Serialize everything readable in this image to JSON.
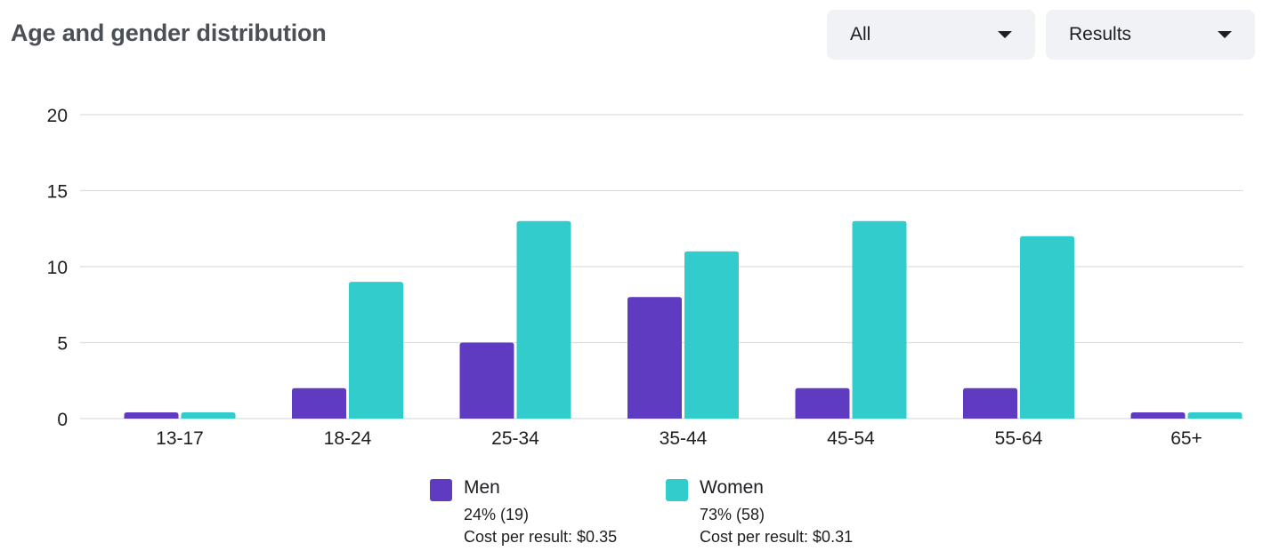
{
  "header": {
    "title": "Age and gender distribution",
    "filter_dropdown": "All",
    "metric_dropdown": "Results"
  },
  "colors": {
    "men": "#5e3bc0",
    "women": "#33cccc",
    "grid": "#dadde1",
    "axis_text": "#1c1e21"
  },
  "chart_data": {
    "type": "bar",
    "title": "Age and gender distribution",
    "xlabel": "",
    "ylabel": "",
    "ylim": [
      0,
      20
    ],
    "yticks": [
      0,
      5,
      10,
      15,
      20
    ],
    "grid": true,
    "legend_position": "bottom-center",
    "categories": [
      "13-17",
      "18-24",
      "25-34",
      "35-44",
      "45-54",
      "55-64",
      "65+"
    ],
    "series": [
      {
        "name": "Men",
        "values": [
          0,
          2,
          5,
          8,
          2,
          2,
          0
        ]
      },
      {
        "name": "Women",
        "values": [
          0,
          9,
          13,
          11,
          13,
          12,
          0
        ]
      }
    ]
  },
  "legend": {
    "men": {
      "label": "Men",
      "share": "24% (19)",
      "cost": "Cost per result: $0.35"
    },
    "women": {
      "label": "Women",
      "share": "73% (58)",
      "cost": "Cost per result: $0.31"
    }
  }
}
